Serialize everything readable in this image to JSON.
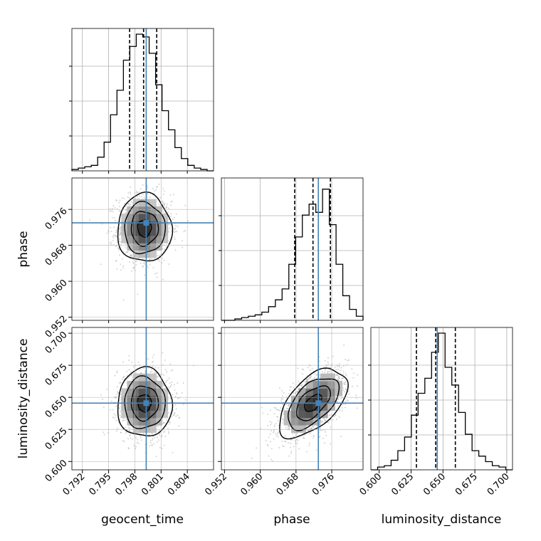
{
  "chart_data": {
    "type": "corner",
    "title": "",
    "parameters": [
      "geocent_time",
      "phase",
      "luminosity_distance"
    ],
    "ranges": [
      [
        0.7908,
        0.807
      ],
      [
        0.9513,
        0.983
      ],
      [
        0.5935,
        0.7045
      ]
    ],
    "ticks": [
      [
        0.792,
        0.795,
        0.798,
        0.801,
        0.804
      ],
      [
        0.952,
        0.96,
        0.968,
        0.976
      ],
      [
        0.6,
        0.625,
        0.65,
        0.675,
        0.7
      ]
    ],
    "tick_labels": [
      [
        "0.792",
        "0.795",
        "0.798",
        "0.801",
        "0.804"
      ],
      [
        "0.952",
        "0.960",
        "0.968",
        "0.976"
      ],
      [
        "0.600",
        "0.625",
        "0.650",
        "0.675",
        "0.700"
      ]
    ],
    "truths": [
      0.7993,
      0.973,
      0.6455
    ],
    "means": [
      0.7991,
      0.9718,
      0.6456
    ],
    "sigmas": [
      0.00155,
      0.0038,
      0.0134
    ],
    "quantiles": [
      [
        0.7974,
        0.799,
        0.8005
      ],
      [
        0.9677,
        0.9718,
        0.9757
      ],
      [
        0.6292,
        0.6443,
        0.6597
      ]
    ],
    "correlations": [
      [
        1,
        0,
        0
      ],
      [
        0,
        1,
        0.55
      ],
      [
        0,
        0.55,
        1
      ]
    ],
    "hist_1d": [
      [
        0.01,
        0.02,
        0.03,
        0.04,
        0.1,
        0.21,
        0.41,
        0.59,
        0.81,
        0.91,
        1.0,
        0.98,
        0.86,
        0.63,
        0.44,
        0.3,
        0.17,
        0.09,
        0.04,
        0.02,
        0.01,
        0.0
      ],
      [
        0.0,
        0.0,
        0.01,
        0.02,
        0.03,
        0.04,
        0.06,
        0.1,
        0.15,
        0.23,
        0.41,
        0.61,
        0.77,
        0.85,
        0.79,
        0.96,
        0.7,
        0.41,
        0.18,
        0.08,
        0.03
      ],
      [
        0.0,
        0.02,
        0.03,
        0.07,
        0.14,
        0.24,
        0.4,
        0.56,
        0.67,
        0.86,
        1.0,
        0.75,
        0.62,
        0.42,
        0.26,
        0.14,
        0.1,
        0.06,
        0.03,
        0.02,
        0.0
      ]
    ],
    "grid": true,
    "truth_color": "#4682b4",
    "hist_color": "#000000",
    "scatter_color": "#b0b0b0"
  }
}
